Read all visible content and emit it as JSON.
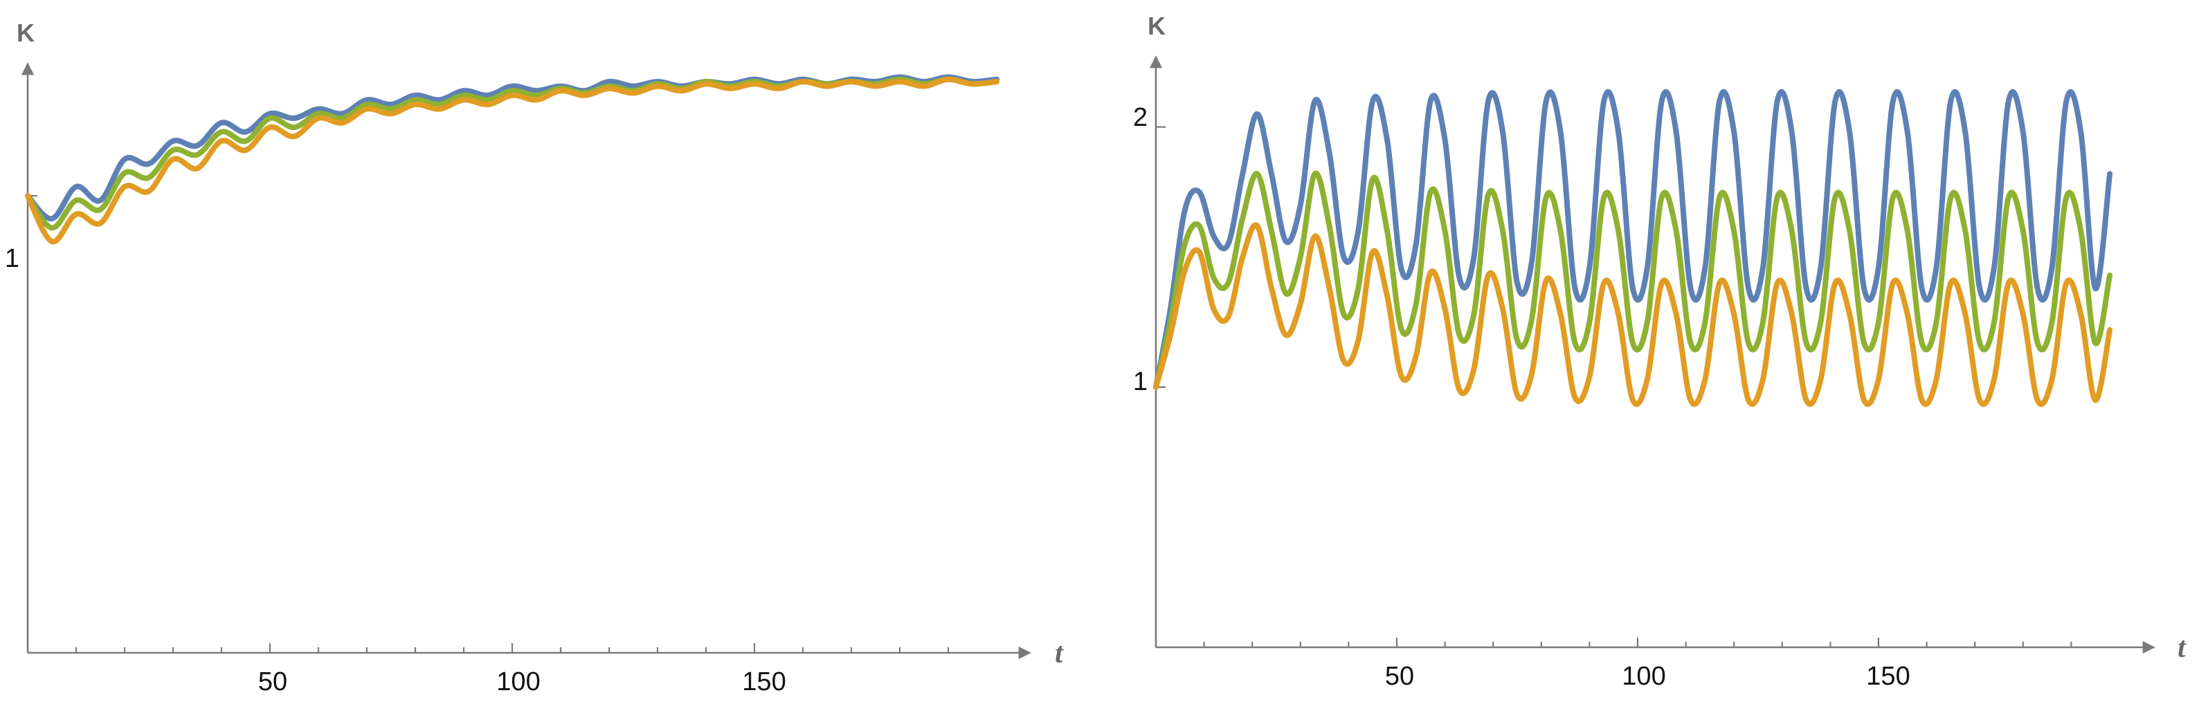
{
  "chart_data": [
    {
      "type": "line",
      "xlabel": "t",
      "ylabel": "K",
      "xlim": [
        0,
        200
      ],
      "ylim": [
        0,
        1.25
      ],
      "xticks": [
        "50",
        "100",
        "150"
      ],
      "yticks": [
        "1"
      ],
      "colors": [
        "#5e81b5",
        "#8fb131",
        "#e19c24"
      ],
      "series": [
        {
          "color": "#5e81b5",
          "x": [
            0,
            5,
            10,
            15,
            20,
            25,
            30,
            35,
            40,
            45,
            50,
            55,
            60,
            65,
            70,
            75,
            80,
            85,
            90,
            95,
            100,
            105,
            110,
            115,
            120,
            125,
            130,
            135,
            140,
            145,
            150,
            155,
            160,
            165,
            170,
            175,
            180,
            185,
            190,
            195,
            200
          ],
          "y": [
            1.0,
            0.95,
            1.02,
            0.99,
            1.08,
            1.07,
            1.12,
            1.11,
            1.16,
            1.14,
            1.18,
            1.17,
            1.19,
            1.18,
            1.21,
            1.2,
            1.22,
            1.21,
            1.23,
            1.22,
            1.24,
            1.23,
            1.24,
            1.23,
            1.25,
            1.24,
            1.25,
            1.24,
            1.25,
            1.245,
            1.255,
            1.245,
            1.255,
            1.245,
            1.255,
            1.25,
            1.26,
            1.25,
            1.26,
            1.25,
            1.255
          ]
        },
        {
          "color": "#8fb131",
          "x": [
            0,
            5,
            10,
            15,
            20,
            25,
            30,
            35,
            40,
            45,
            50,
            55,
            60,
            65,
            70,
            75,
            80,
            85,
            90,
            95,
            100,
            105,
            110,
            115,
            120,
            125,
            130,
            135,
            140,
            145,
            150,
            155,
            160,
            165,
            170,
            175,
            180,
            185,
            190,
            195,
            200
          ],
          "y": [
            1.0,
            0.93,
            0.99,
            0.97,
            1.05,
            1.04,
            1.1,
            1.09,
            1.14,
            1.12,
            1.17,
            1.15,
            1.18,
            1.17,
            1.2,
            1.19,
            1.21,
            1.2,
            1.22,
            1.21,
            1.23,
            1.22,
            1.235,
            1.225,
            1.24,
            1.23,
            1.245,
            1.235,
            1.25,
            1.24,
            1.25,
            1.24,
            1.25,
            1.245,
            1.25,
            1.245,
            1.255,
            1.245,
            1.255,
            1.245,
            1.25
          ]
        },
        {
          "color": "#e19c24",
          "x": [
            0,
            5,
            10,
            15,
            20,
            25,
            30,
            35,
            40,
            45,
            50,
            55,
            60,
            65,
            70,
            75,
            80,
            85,
            90,
            95,
            100,
            105,
            110,
            115,
            120,
            125,
            130,
            135,
            140,
            145,
            150,
            155,
            160,
            165,
            170,
            175,
            180,
            185,
            190,
            195,
            200
          ],
          "y": [
            1.0,
            0.9,
            0.96,
            0.94,
            1.02,
            1.01,
            1.08,
            1.06,
            1.12,
            1.1,
            1.15,
            1.13,
            1.17,
            1.16,
            1.19,
            1.18,
            1.2,
            1.19,
            1.21,
            1.2,
            1.22,
            1.21,
            1.23,
            1.22,
            1.235,
            1.225,
            1.24,
            1.23,
            1.245,
            1.235,
            1.245,
            1.235,
            1.25,
            1.24,
            1.25,
            1.24,
            1.25,
            1.24,
            1.255,
            1.245,
            1.25
          ]
        }
      ]
    },
    {
      "type": "line",
      "xlabel": "t",
      "ylabel": "K",
      "xlim": [
        0,
        200
      ],
      "ylim": [
        0,
        2.1
      ],
      "xticks": [
        "50",
        "100",
        "150"
      ],
      "yticks": [
        "1",
        "2"
      ],
      "colors": [
        "#5e81b5",
        "#8fb131",
        "#e19c24"
      ],
      "series": [
        {
          "color": "#5e81b5",
          "x": [
            0,
            3,
            6,
            9,
            12,
            15,
            18,
            21,
            24,
            27,
            30,
            33,
            36,
            39,
            42,
            45,
            48,
            51,
            54,
            57,
            60,
            63,
            66,
            69,
            72,
            75,
            78,
            81,
            84,
            87,
            90,
            93,
            96,
            99,
            102,
            105,
            108,
            111,
            114,
            117,
            120,
            123,
            126,
            129,
            132,
            135,
            138,
            141,
            144,
            147,
            150,
            153,
            156,
            159,
            162,
            165,
            168,
            171,
            174,
            177,
            180,
            183,
            186,
            189,
            192,
            195,
            198
          ],
          "y": [
            1.0,
            1.3,
            1.68,
            1.75,
            1.58,
            1.55,
            1.82,
            2.05,
            1.82,
            1.56,
            1.7,
            2.1,
            1.9,
            1.5,
            1.6,
            2.1,
            1.95,
            1.45,
            1.55,
            2.1,
            1.95,
            1.42,
            1.5,
            2.1,
            1.98,
            1.4,
            1.48,
            2.1,
            1.98,
            1.38,
            1.46,
            2.1,
            1.98,
            1.38,
            1.46,
            2.1,
            1.98,
            1.38,
            1.46,
            2.1,
            1.98,
            1.38,
            1.46,
            2.1,
            1.98,
            1.38,
            1.46,
            2.1,
            1.98,
            1.38,
            1.46,
            2.1,
            1.98,
            1.38,
            1.46,
            2.1,
            1.98,
            1.38,
            1.46,
            2.1,
            1.98,
            1.38,
            1.46,
            2.1,
            1.98,
            1.38,
            1.82
          ]
        },
        {
          "color": "#8fb131",
          "x": [
            0,
            3,
            6,
            9,
            12,
            15,
            18,
            21,
            24,
            27,
            30,
            33,
            36,
            39,
            42,
            45,
            48,
            51,
            54,
            57,
            60,
            63,
            66,
            69,
            72,
            75,
            78,
            81,
            84,
            87,
            90,
            93,
            96,
            99,
            102,
            105,
            108,
            111,
            114,
            117,
            120,
            123,
            126,
            129,
            132,
            135,
            138,
            141,
            144,
            147,
            150,
            153,
            156,
            159,
            162,
            165,
            168,
            171,
            174,
            177,
            180,
            183,
            186,
            189,
            192,
            195,
            198
          ],
          "y": [
            1.0,
            1.25,
            1.55,
            1.62,
            1.42,
            1.4,
            1.65,
            1.82,
            1.6,
            1.36,
            1.5,
            1.82,
            1.62,
            1.28,
            1.38,
            1.8,
            1.6,
            1.22,
            1.32,
            1.75,
            1.6,
            1.2,
            1.28,
            1.74,
            1.6,
            1.18,
            1.26,
            1.73,
            1.6,
            1.17,
            1.25,
            1.73,
            1.6,
            1.17,
            1.25,
            1.73,
            1.6,
            1.17,
            1.25,
            1.73,
            1.6,
            1.17,
            1.25,
            1.73,
            1.6,
            1.17,
            1.25,
            1.73,
            1.6,
            1.17,
            1.25,
            1.73,
            1.6,
            1.17,
            1.25,
            1.73,
            1.6,
            1.17,
            1.25,
            1.73,
            1.6,
            1.17,
            1.25,
            1.73,
            1.6,
            1.17,
            1.43
          ]
        },
        {
          "color": "#e19c24",
          "x": [
            0,
            3,
            6,
            9,
            12,
            15,
            18,
            21,
            24,
            27,
            30,
            33,
            36,
            39,
            42,
            45,
            48,
            51,
            54,
            57,
            60,
            63,
            66,
            69,
            72,
            75,
            78,
            81,
            84,
            87,
            90,
            93,
            96,
            99,
            102,
            105,
            108,
            111,
            114,
            117,
            120,
            123,
            126,
            129,
            132,
            135,
            138,
            141,
            144,
            147,
            150,
            153,
            156,
            159,
            162,
            165,
            168,
            171,
            174,
            177,
            180,
            183,
            186,
            189,
            192,
            195,
            198
          ],
          "y": [
            1.0,
            1.2,
            1.45,
            1.52,
            1.3,
            1.27,
            1.5,
            1.62,
            1.38,
            1.2,
            1.32,
            1.58,
            1.38,
            1.1,
            1.18,
            1.52,
            1.35,
            1.04,
            1.12,
            1.44,
            1.3,
            0.99,
            1.07,
            1.43,
            1.3,
            0.97,
            1.05,
            1.41,
            1.28,
            0.96,
            1.04,
            1.4,
            1.28,
            0.95,
            1.03,
            1.4,
            1.28,
            0.95,
            1.03,
            1.4,
            1.28,
            0.95,
            1.03,
            1.4,
            1.28,
            0.95,
            1.03,
            1.4,
            1.28,
            0.95,
            1.03,
            1.4,
            1.28,
            0.95,
            1.03,
            1.4,
            1.28,
            0.95,
            1.03,
            1.4,
            1.28,
            0.95,
            1.03,
            1.4,
            1.28,
            0.95,
            1.22
          ]
        }
      ]
    }
  ]
}
